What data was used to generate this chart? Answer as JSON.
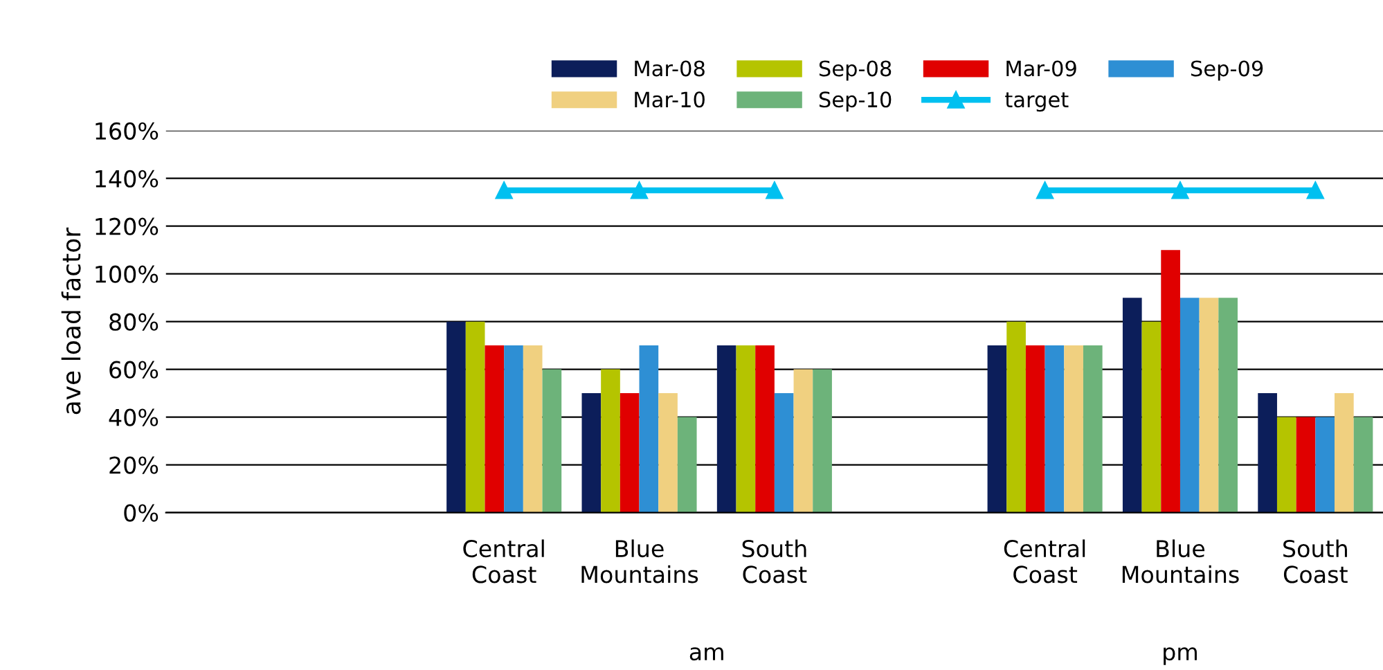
{
  "chart_data": {
    "type": "bar",
    "ylabel": "ave load factor",
    "categories": [
      null,
      null,
      "Central\nCoast",
      "Blue\nMountains",
      "South\nCoast",
      null,
      "Central\nCoast",
      "Blue\nMountains",
      "South\nCoast"
    ],
    "series": [
      {
        "name": "Mar-08",
        "color": "#0c1e5a",
        "values": [
          null,
          null,
          80,
          50,
          70,
          null,
          70,
          90,
          50
        ]
      },
      {
        "name": "Sep-08",
        "color": "#b5c400",
        "values": [
          null,
          null,
          80,
          60,
          70,
          null,
          80,
          80,
          40
        ]
      },
      {
        "name": "Mar-09",
        "color": "#e00000",
        "values": [
          null,
          null,
          70,
          50,
          70,
          null,
          70,
          110,
          40
        ]
      },
      {
        "name": "Sep-09",
        "color": "#2e8fd4",
        "values": [
          null,
          null,
          70,
          70,
          50,
          null,
          70,
          90,
          40
        ]
      },
      {
        "name": "Mar-10",
        "color": "#f0d080",
        "values": [
          null,
          null,
          70,
          50,
          60,
          null,
          70,
          90,
          50
        ]
      },
      {
        "name": "Sep-10",
        "color": "#6db37a",
        "values": [
          null,
          null,
          60,
          40,
          60,
          null,
          70,
          90,
          40
        ]
      },
      {
        "name": "target",
        "type": "line",
        "color": "#00c0f0",
        "marker": "triangle",
        "values": [
          null,
          null,
          135,
          135,
          135,
          null,
          135,
          135,
          135
        ]
      }
    ],
    "ylim": [
      0,
      160
    ],
    "yticks": [
      {
        "value": 0,
        "label": "0%"
      },
      {
        "value": 20,
        "label": "20%"
      },
      {
        "value": 40,
        "label": "40%"
      },
      {
        "value": 60,
        "label": "60%"
      },
      {
        "value": 80,
        "label": "80%"
      },
      {
        "value": 100,
        "label": "100%"
      },
      {
        "value": 120,
        "label": "120%"
      },
      {
        "value": 140,
        "label": "140%"
      },
      {
        "value": 160,
        "label": "160%"
      }
    ],
    "grid": "y",
    "legend": "top",
    "annotations": [
      "am",
      "pm"
    ]
  }
}
